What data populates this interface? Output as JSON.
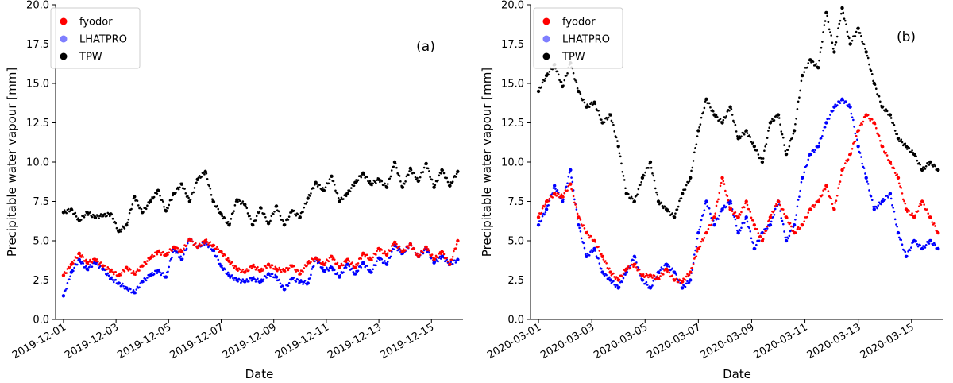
{
  "chart_data": [
    {
      "type": "scatter",
      "panel_label": "(a)",
      "xlabel": "Date",
      "ylabel": "Precipitable water vapour [mm]",
      "ylim": [
        0,
        20
      ],
      "yticks": [
        0.0,
        2.5,
        5.0,
        7.5,
        10.0,
        12.5,
        15.0,
        17.5,
        20.0
      ],
      "ytick_labels": [
        "0.0",
        "2.5",
        "5.0",
        "7.5",
        "10.0",
        "12.5",
        "15.0",
        "17.5",
        "20.0"
      ],
      "xlim_days": [
        -0.3,
        15.2
      ],
      "xticks_days": [
        0,
        2,
        4,
        6,
        8,
        10,
        12,
        14
      ],
      "xtick_labels": [
        "2019-12-01",
        "2019-12-03",
        "2019-12-05",
        "2019-12-07",
        "2019-12-09",
        "2019-12-11",
        "2019-12-13",
        "2019-12-15"
      ],
      "legend": {
        "position": "top-left",
        "entries": [
          "fyodor",
          "LHATPRO",
          "TPW"
        ]
      },
      "series": [
        {
          "name": "fyodor",
          "color": "#ff0000",
          "x": [
            0,
            0.3,
            0.6,
            0.9,
            1.2,
            1.5,
            1.8,
            2.1,
            2.4,
            2.7,
            3.0,
            3.3,
            3.6,
            3.9,
            4.2,
            4.5,
            4.8,
            5.1,
            5.4,
            5.7,
            6.0,
            6.3,
            6.6,
            6.9,
            7.2,
            7.5,
            7.8,
            8.1,
            8.4,
            8.7,
            9.0,
            9.3,
            9.6,
            9.9,
            10.2,
            10.5,
            10.8,
            11.1,
            11.4,
            11.7,
            12.0,
            12.3,
            12.6,
            12.9,
            13.2,
            13.5,
            13.8,
            14.1,
            14.4,
            14.7,
            15.0
          ],
          "y": [
            2.8,
            3.5,
            4.2,
            3.6,
            3.8,
            3.4,
            3.1,
            2.8,
            3.3,
            2.9,
            3.4,
            3.9,
            4.3,
            4.1,
            4.6,
            4.3,
            5.1,
            4.6,
            5.0,
            4.7,
            4.3,
            3.7,
            3.2,
            3.0,
            3.4,
            3.1,
            3.5,
            3.2,
            3.1,
            3.4,
            2.9,
            3.6,
            3.9,
            3.5,
            4.0,
            3.3,
            3.8,
            3.3,
            4.2,
            3.8,
            4.5,
            4.1,
            4.9,
            4.3,
            4.8,
            4.0,
            4.6,
            3.8,
            4.3,
            3.5,
            5.0
          ]
        },
        {
          "name": "LHATPRO",
          "color": "#0000ff",
          "x": [
            0,
            0.3,
            0.6,
            0.9,
            1.2,
            1.5,
            1.8,
            2.1,
            2.4,
            2.7,
            3.0,
            3.3,
            3.6,
            3.9,
            4.2,
            4.5,
            4.8,
            5.1,
            5.4,
            5.7,
            6.0,
            6.3,
            6.6,
            6.9,
            7.2,
            7.5,
            7.8,
            8.1,
            8.4,
            8.7,
            9.0,
            9.3,
            9.6,
            9.9,
            10.2,
            10.5,
            10.8,
            11.1,
            11.4,
            11.7,
            12.0,
            12.3,
            12.6,
            12.9,
            13.2,
            13.5,
            13.8,
            14.1,
            14.4,
            14.7,
            15.0
          ],
          "y": [
            1.5,
            3.0,
            3.8,
            3.2,
            3.6,
            3.2,
            2.6,
            2.3,
            2.0,
            1.7,
            2.4,
            2.8,
            3.1,
            2.7,
            4.5,
            3.8,
            5.1,
            4.6,
            4.9,
            4.4,
            3.4,
            2.8,
            2.5,
            2.4,
            2.6,
            2.4,
            2.9,
            2.7,
            1.9,
            2.6,
            2.4,
            2.3,
            3.9,
            3.1,
            3.3,
            2.7,
            3.5,
            2.9,
            3.6,
            3.0,
            3.9,
            3.5,
            4.7,
            4.2,
            4.8,
            4.0,
            4.5,
            3.6,
            4.0,
            3.5,
            3.8
          ]
        },
        {
          "name": "TPW",
          "color": "#000000",
          "x": [
            0,
            0.3,
            0.6,
            0.9,
            1.2,
            1.5,
            1.8,
            2.1,
            2.4,
            2.7,
            3.0,
            3.3,
            3.6,
            3.9,
            4.2,
            4.5,
            4.8,
            5.1,
            5.4,
            5.7,
            6.0,
            6.3,
            6.6,
            6.9,
            7.2,
            7.5,
            7.8,
            8.1,
            8.4,
            8.7,
            9.0,
            9.3,
            9.6,
            9.9,
            10.2,
            10.5,
            10.8,
            11.1,
            11.4,
            11.7,
            12.0,
            12.3,
            12.6,
            12.9,
            13.2,
            13.5,
            13.8,
            14.1,
            14.4,
            14.7,
            15.0
          ],
          "y": [
            6.8,
            7.0,
            6.3,
            6.8,
            6.5,
            6.6,
            6.7,
            5.6,
            6.0,
            7.8,
            6.8,
            7.5,
            8.2,
            6.9,
            8.0,
            8.6,
            7.5,
            8.9,
            9.4,
            7.5,
            6.7,
            6.0,
            7.6,
            7.3,
            6.0,
            7.1,
            6.1,
            7.2,
            6.0,
            6.9,
            6.5,
            7.7,
            8.7,
            8.2,
            9.1,
            7.5,
            8.0,
            8.7,
            9.3,
            8.6,
            8.9,
            8.4,
            10.0,
            8.4,
            9.6,
            8.8,
            9.9,
            8.4,
            9.5,
            8.5,
            9.4
          ]
        }
      ]
    },
    {
      "type": "scatter",
      "panel_label": "(b)",
      "xlabel": "Date",
      "ylabel": "Precipitable water vapour [mm]",
      "ylim": [
        0,
        20
      ],
      "yticks": [
        0.0,
        2.5,
        5.0,
        7.5,
        10.0,
        12.5,
        15.0,
        17.5,
        20.0
      ],
      "ytick_labels": [
        "0.0",
        "2.5",
        "5.0",
        "7.5",
        "10.0",
        "12.5",
        "15.0",
        "17.5",
        "20.0"
      ],
      "xlim_days": [
        -0.3,
        15.2
      ],
      "xticks_days": [
        0,
        2,
        4,
        6,
        8,
        10,
        12,
        14
      ],
      "xtick_labels": [
        "2020-03-01",
        "2020-03-03",
        "2020-03-05",
        "2020-03-07",
        "2020-03-09",
        "2020-03-11",
        "2020-03-13",
        "2020-03-15"
      ],
      "legend": {
        "position": "top-left",
        "entries": [
          "fyodor",
          "LHATPRO",
          "TPW"
        ]
      },
      "series": [
        {
          "name": "fyodor",
          "color": "#ff0000",
          "x": [
            0,
            0.3,
            0.6,
            0.9,
            1.2,
            1.5,
            1.8,
            2.1,
            2.4,
            2.7,
            3.0,
            3.3,
            3.6,
            3.9,
            4.2,
            4.5,
            4.8,
            5.1,
            5.4,
            5.7,
            6.0,
            6.3,
            6.6,
            6.9,
            7.2,
            7.5,
            7.8,
            8.1,
            8.4,
            8.7,
            9.0,
            9.3,
            9.6,
            9.9,
            10.2,
            10.5,
            10.8,
            11.1,
            11.4,
            11.7,
            12.0,
            12.3,
            12.6,
            12.9,
            13.2,
            13.5,
            13.8,
            14.1,
            14.4,
            14.7,
            15.0
          ],
          "y": [
            6.5,
            7.5,
            8.0,
            7.8,
            8.6,
            6.5,
            5.5,
            5.0,
            4.0,
            3.0,
            2.5,
            3.2,
            3.5,
            2.8,
            2.8,
            2.6,
            3.2,
            2.5,
            2.4,
            3.0,
            4.5,
            5.5,
            6.5,
            9.0,
            7.0,
            6.5,
            7.5,
            6.0,
            5.0,
            6.5,
            7.5,
            6.5,
            5.5,
            6.0,
            7.0,
            7.5,
            8.5,
            7.0,
            9.5,
            10.5,
            12.0,
            13.0,
            12.5,
            11.0,
            10.0,
            9.0,
            7.0,
            6.5,
            7.5,
            6.5,
            5.5
          ]
        },
        {
          "name": "LHATPRO",
          "color": "#0000ff",
          "x": [
            0,
            0.3,
            0.6,
            0.9,
            1.2,
            1.5,
            1.8,
            2.1,
            2.4,
            2.7,
            3.0,
            3.3,
            3.6,
            3.9,
            4.2,
            4.5,
            4.8,
            5.1,
            5.4,
            5.7,
            6.0,
            6.3,
            6.6,
            6.9,
            7.2,
            7.5,
            7.8,
            8.1,
            8.4,
            8.7,
            9.0,
            9.3,
            9.6,
            9.9,
            10.2,
            10.5,
            10.8,
            11.1,
            11.4,
            11.7,
            12.0,
            12.3,
            12.6,
            12.9,
            13.2,
            13.5,
            13.8,
            14.1,
            14.4,
            14.7,
            15.0
          ],
          "y": [
            6.0,
            7.0,
            8.5,
            7.5,
            9.5,
            6.0,
            4.0,
            4.5,
            3.0,
            2.5,
            2.0,
            3.0,
            4.0,
            2.5,
            2.0,
            3.0,
            3.5,
            3.0,
            2.0,
            2.5,
            5.5,
            7.5,
            6.0,
            7.0,
            7.5,
            5.5,
            6.5,
            4.5,
            5.5,
            6.0,
            7.5,
            5.0,
            6.0,
            9.0,
            10.5,
            11.0,
            12.5,
            13.5,
            14.0,
            13.5,
            11.0,
            9.0,
            7.0,
            7.5,
            8.0,
            5.5,
            4.0,
            5.0,
            4.5,
            5.0,
            4.5
          ]
        },
        {
          "name": "TPW",
          "color": "#000000",
          "x": [
            0,
            0.3,
            0.6,
            0.9,
            1.2,
            1.5,
            1.8,
            2.1,
            2.4,
            2.7,
            3.0,
            3.3,
            3.6,
            3.9,
            4.2,
            4.5,
            4.8,
            5.1,
            5.4,
            5.7,
            6.0,
            6.3,
            6.6,
            6.9,
            7.2,
            7.5,
            7.8,
            8.1,
            8.4,
            8.7,
            9.0,
            9.3,
            9.6,
            9.9,
            10.2,
            10.5,
            10.8,
            11.1,
            11.4,
            11.7,
            12.0,
            12.3,
            12.6,
            12.9,
            13.2,
            13.5,
            13.8,
            14.1,
            14.4,
            14.7,
            15.0
          ],
          "y": [
            14.5,
            15.5,
            16.2,
            14.8,
            16.3,
            14.5,
            13.5,
            13.8,
            12.5,
            13.0,
            11.0,
            8.0,
            7.5,
            9.0,
            10.0,
            7.5,
            7.0,
            6.5,
            8.0,
            9.0,
            12.0,
            14.0,
            13.0,
            12.5,
            13.5,
            11.5,
            12.0,
            11.0,
            10.0,
            12.5,
            13.0,
            10.5,
            12.0,
            15.5,
            16.5,
            16.0,
            19.5,
            17.0,
            19.8,
            17.5,
            18.5,
            17.0,
            15.0,
            13.5,
            13.0,
            11.5,
            11.0,
            10.5,
            9.5,
            10.0,
            9.5
          ]
        }
      ]
    }
  ]
}
